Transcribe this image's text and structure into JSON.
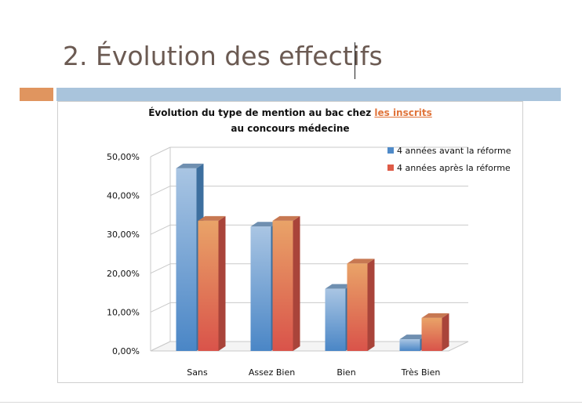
{
  "slide": {
    "title": "2. Évolution des effectifs"
  },
  "chart_data": {
    "type": "bar",
    "title_line1_prefix": "Évolution du type de mention au bac chez ",
    "title_line1_link": "les inscrits",
    "title_line2": "au concours médecine",
    "categories": [
      "Sans",
      "Assez Bien",
      "Bien",
      "Très Bien"
    ],
    "series": [
      {
        "name": "4 années avant la réforme",
        "values": [
          0.47,
          0.32,
          0.16,
          0.03
        ],
        "color": "#4f8ac8"
      },
      {
        "name": "4 années après la réforme",
        "values": [
          0.335,
          0.335,
          0.225,
          0.085
        ],
        "color": "#de5b47"
      }
    ],
    "ylim": [
      0,
      0.5
    ],
    "yticks": [
      "0,00%",
      "10,00%",
      "20,00%",
      "30,00%",
      "40,00%",
      "50,00%"
    ],
    "grid": true,
    "legend_position": "top-right"
  }
}
